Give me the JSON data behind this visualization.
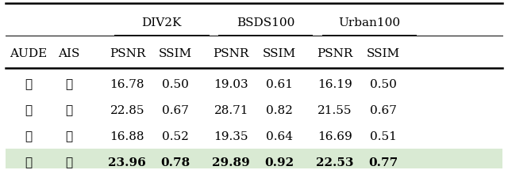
{
  "col_headers_sub": [
    "AUDE",
    "AIS",
    "PSNR",
    "SSIM",
    "PSNR",
    "SSIM",
    "PSNR",
    "SSIM"
  ],
  "col_span_top": [
    [
      2,
      4,
      "DIV2K"
    ],
    [
      4,
      6,
      "BSDS100"
    ],
    [
      6,
      8,
      "Urban100"
    ]
  ],
  "rows": [
    [
      "✗",
      "✗",
      "16.78",
      "0.50",
      "19.03",
      "0.61",
      "16.19",
      "0.50"
    ],
    [
      "✓",
      "✗",
      "22.85",
      "0.67",
      "28.71",
      "0.82",
      "21.55",
      "0.67"
    ],
    [
      "✗",
      "✓",
      "16.88",
      "0.52",
      "19.35",
      "0.64",
      "16.69",
      "0.51"
    ],
    [
      "✓",
      "✓",
      "23.96",
      "0.78",
      "29.89",
      "0.92",
      "22.53",
      "0.77"
    ]
  ],
  "row_bold": [
    false,
    false,
    false,
    true
  ],
  "row_highlight": [
    false,
    false,
    false,
    true
  ],
  "highlight_color": "#d9ead3",
  "background_color": "#ffffff",
  "font_size": 11,
  "figsize": [
    6.4,
    2.15
  ],
  "dpi": 100
}
